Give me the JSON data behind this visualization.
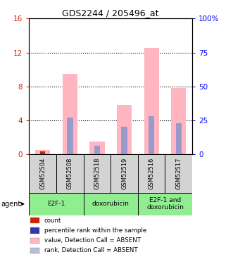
{
  "title": "GDS2244 / 205496_at",
  "samples": [
    "GSM52504",
    "GSM52508",
    "GSM52518",
    "GSM52519",
    "GSM52516",
    "GSM52517"
  ],
  "groups": [
    {
      "label": "E2F-1",
      "cols": [
        0,
        1
      ],
      "color": "#90EE90"
    },
    {
      "label": "doxorubicin",
      "cols": [
        2,
        3
      ],
      "color": "#90EE90"
    },
    {
      "label": "E2F-1 and\ndoxorubicin",
      "cols": [
        4,
        5
      ],
      "color": "#90EE90"
    }
  ],
  "pink_bars": [
    0.5,
    9.5,
    1.5,
    5.8,
    12.5,
    7.8
  ],
  "blue_bars_right_scale": [
    0.0,
    26.9,
    6.25,
    20.6,
    28.1,
    23.1
  ],
  "red_bars": [
    0.4,
    0.0,
    0.0,
    0.0,
    0.0,
    0.0
  ],
  "ylim_left": [
    0,
    16
  ],
  "ylim_right": [
    0,
    100
  ],
  "yticks_left": [
    0,
    4,
    8,
    12,
    16
  ],
  "yticks_right": [
    0,
    25,
    50,
    75,
    100
  ],
  "yticklabels_left": [
    "0",
    "4",
    "8",
    "12",
    "16"
  ],
  "yticklabels_right": [
    "0",
    "25",
    "50",
    "75",
    "100%"
  ],
  "hlines": [
    4,
    8,
    12
  ],
  "pink_color": "#FFB6C1",
  "blue_color": "#9999CC",
  "red_color": "#CC2200",
  "gray_color": "#D3D3D3",
  "green_color": "#90EE90",
  "agent_label": "agent",
  "legend_items": [
    {
      "color": "#CC2200",
      "label": "count"
    },
    {
      "color": "#3333AA",
      "label": "percentile rank within the sample"
    },
    {
      "color": "#FFB6C1",
      "label": "value, Detection Call = ABSENT"
    },
    {
      "color": "#BBBBDD",
      "label": "rank, Detection Call = ABSENT"
    }
  ]
}
